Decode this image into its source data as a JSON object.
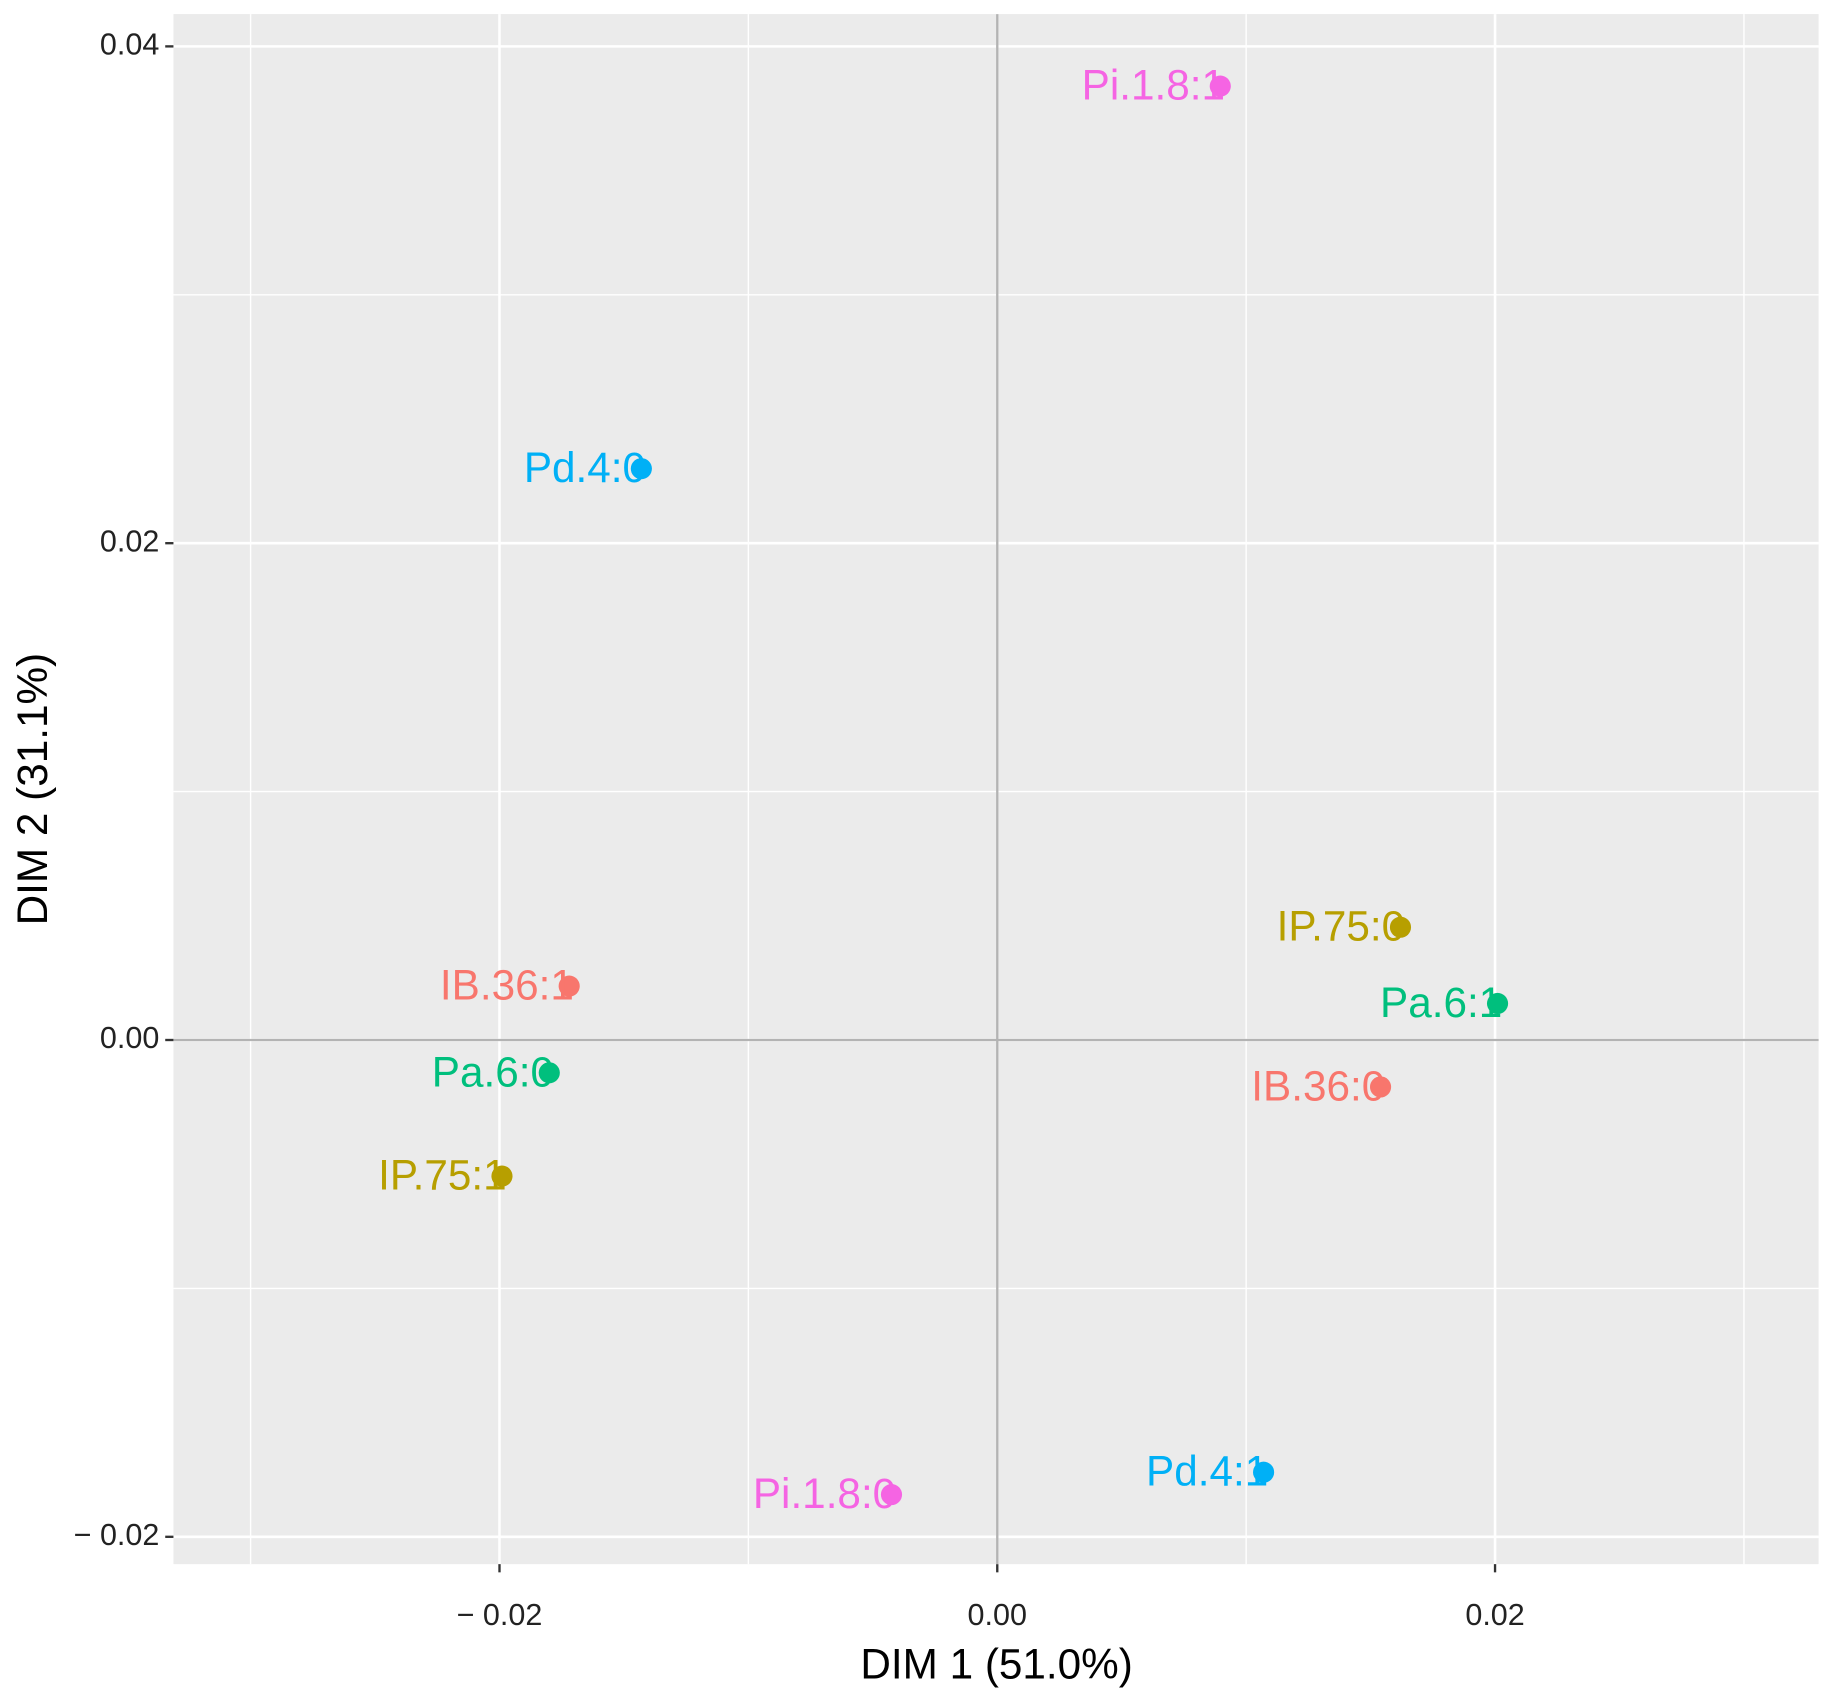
{
  "chart_data": {
    "type": "scatter",
    "xlabel": "DIM 1 (51.0%)",
    "ylabel": "DIM 2 (31.1%)",
    "xlim": [
      -0.0331,
      0.033
    ],
    "ylim": [
      -0.0211,
      0.0413
    ],
    "xticks": [
      {
        "value": -0.02,
        "label": "− 0.02"
      },
      {
        "value": 0,
        "label": "0.00"
      },
      0.02
    ],
    "yticks": [
      {
        "value": -0.02,
        "label": "− 0.02"
      },
      {
        "value": 0,
        "label": "0.00"
      },
      0.02,
      0.04
    ],
    "xminor": [
      -0.03,
      -0.01,
      0.01,
      0.03
    ],
    "yminor": [
      -0.01,
      0.01,
      0.03
    ],
    "reference_lines": {
      "x": 0,
      "y": 0
    },
    "grid": true,
    "points": [
      {
        "label": "Pi.1.8:1",
        "x": 0.00896,
        "y": 0.0384,
        "color": "#f564e3"
      },
      {
        "label": "Pd.4:0",
        "x": -0.0143,
        "y": 0.023,
        "color": "#00b0f6"
      },
      {
        "label": "IP.75:0",
        "x": 0.0162,
        "y": 0.00454,
        "color": "#b79f00"
      },
      {
        "label": "Pa.6:1",
        "x": 0.0201,
        "y": 0.00147,
        "color": "#00bf7d"
      },
      {
        "label": "IB.36:0",
        "x": 0.0154,
        "y": -0.00189,
        "color": "#f8766d"
      },
      {
        "label": "IB.36:1",
        "x": -0.0172,
        "y": 0.00217,
        "color": "#f8766d"
      },
      {
        "label": "Pa.6:0",
        "x": -0.018,
        "y": -0.00132,
        "color": "#00bf7d"
      },
      {
        "label": "IP.75:1",
        "x": -0.0199,
        "y": -0.00548,
        "color": "#b79f00"
      },
      {
        "label": "Pi.1.8:0",
        "x": -0.00425,
        "y": -0.0183,
        "color": "#f564e3"
      },
      {
        "label": "Pd.4:1",
        "x": 0.0107,
        "y": -0.0174,
        "color": "#00b0f6"
      }
    ]
  }
}
